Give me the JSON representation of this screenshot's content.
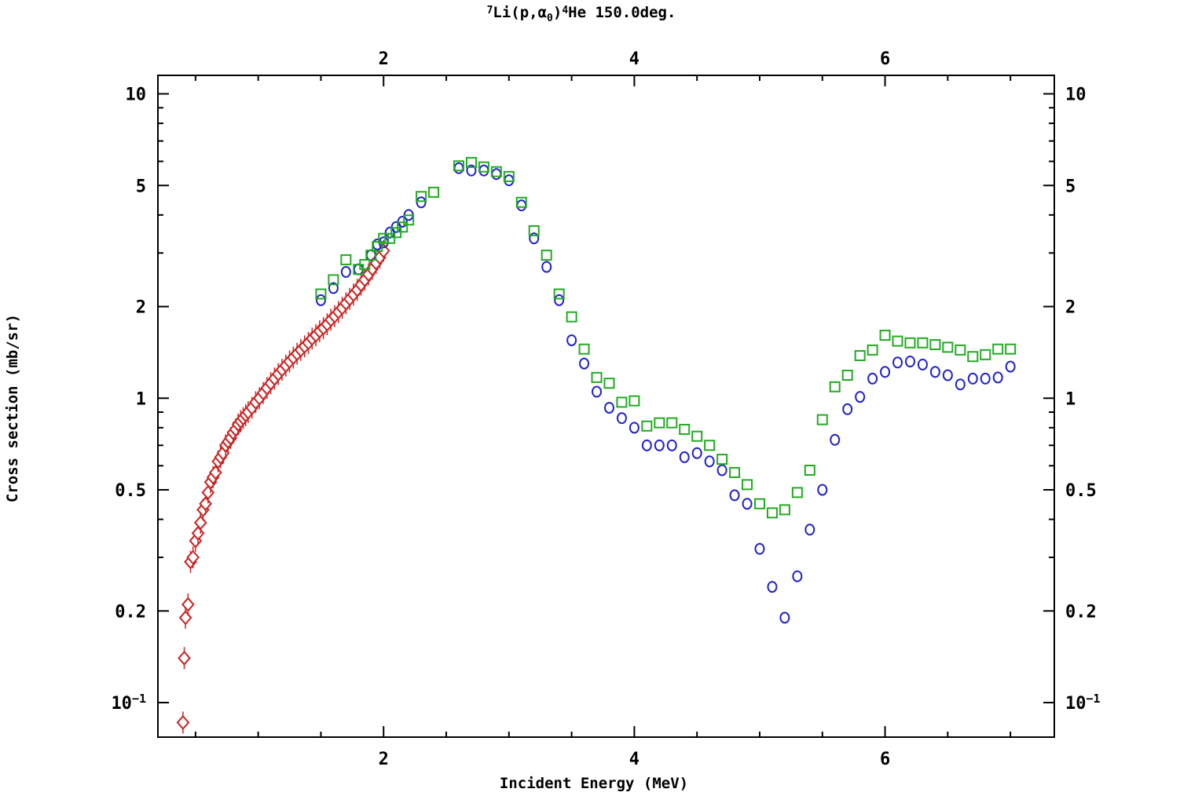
{
  "chart_data": {
    "type": "scatter",
    "title": {
      "pre": "7",
      "a": "Li(p,",
      "greek": "α",
      "sub": "0",
      "b": ")",
      "sup": "4",
      "c": "He 150.0deg."
    },
    "xlabel": "Incident Energy (MeV)",
    "ylabel": "Cross section (mb/sr)",
    "xlim": [
      0.2,
      7.35
    ],
    "ylim": [
      0.077,
      11.5
    ],
    "yscale": "log",
    "x_ticks": [
      2,
      4,
      6
    ],
    "y_ticks": [
      {
        "value": 10,
        "label": "10"
      },
      {
        "value": 5,
        "label": "5"
      },
      {
        "value": 2,
        "label": "2"
      },
      {
        "value": 1,
        "label": "1"
      },
      {
        "value": 0.5,
        "label": "0.5"
      },
      {
        "value": 0.2,
        "label": "0.2"
      },
      {
        "value": 0.1,
        "label": "10",
        "sup": "−1"
      }
    ],
    "grid": false,
    "series": [
      {
        "marker": "diamond",
        "color": "#cc2222",
        "points": [
          [
            0.4,
            0.086
          ],
          [
            0.41,
            0.14
          ],
          [
            0.42,
            0.19
          ],
          [
            0.44,
            0.21
          ],
          [
            0.46,
            0.29
          ],
          [
            0.48,
            0.3
          ],
          [
            0.5,
            0.34
          ],
          [
            0.52,
            0.36
          ],
          [
            0.54,
            0.39
          ],
          [
            0.56,
            0.43
          ],
          [
            0.58,
            0.45
          ],
          [
            0.6,
            0.49
          ],
          [
            0.62,
            0.53
          ],
          [
            0.64,
            0.55
          ],
          [
            0.66,
            0.57
          ],
          [
            0.68,
            0.62
          ],
          [
            0.7,
            0.64
          ],
          [
            0.72,
            0.66
          ],
          [
            0.74,
            0.7
          ],
          [
            0.76,
            0.72
          ],
          [
            0.78,
            0.74
          ],
          [
            0.8,
            0.77
          ],
          [
            0.82,
            0.79
          ],
          [
            0.84,
            0.82
          ],
          [
            0.86,
            0.84
          ],
          [
            0.88,
            0.86
          ],
          [
            0.9,
            0.88
          ],
          [
            0.92,
            0.9
          ],
          [
            0.95,
            0.93
          ],
          [
            0.98,
            0.97
          ],
          [
            1.01,
            1.0
          ],
          [
            1.04,
            1.04
          ],
          [
            1.07,
            1.08
          ],
          [
            1.1,
            1.12
          ],
          [
            1.13,
            1.16
          ],
          [
            1.16,
            1.2
          ],
          [
            1.19,
            1.24
          ],
          [
            1.22,
            1.28
          ],
          [
            1.25,
            1.32
          ],
          [
            1.28,
            1.36
          ],
          [
            1.31,
            1.4
          ],
          [
            1.34,
            1.44
          ],
          [
            1.37,
            1.48
          ],
          [
            1.4,
            1.52
          ],
          [
            1.43,
            1.57
          ],
          [
            1.46,
            1.61
          ],
          [
            1.49,
            1.66
          ],
          [
            1.52,
            1.7
          ],
          [
            1.55,
            1.75
          ],
          [
            1.58,
            1.81
          ],
          [
            1.61,
            1.86
          ],
          [
            1.64,
            1.92
          ],
          [
            1.67,
            1.98
          ],
          [
            1.7,
            2.05
          ],
          [
            1.73,
            2.12
          ],
          [
            1.76,
            2.19
          ],
          [
            1.79,
            2.27
          ],
          [
            1.82,
            2.36
          ],
          [
            1.85,
            2.45
          ],
          [
            1.88,
            2.55
          ],
          [
            1.91,
            2.66
          ],
          [
            1.94,
            2.78
          ],
          [
            1.97,
            2.9
          ],
          [
            2.0,
            3.05
          ]
        ]
      },
      {
        "marker": "circle",
        "color": "#2222cc",
        "points": [
          [
            1.5,
            2.1
          ],
          [
            1.6,
            2.3
          ],
          [
            1.7,
            2.6
          ],
          [
            1.8,
            2.65
          ],
          [
            1.9,
            2.95
          ],
          [
            1.95,
            3.2
          ],
          [
            2.0,
            3.25
          ],
          [
            2.05,
            3.5
          ],
          [
            2.1,
            3.65
          ],
          [
            2.15,
            3.8
          ],
          [
            2.2,
            4.0
          ],
          [
            2.3,
            4.4
          ],
          [
            2.6,
            5.7
          ],
          [
            2.7,
            5.6
          ],
          [
            2.8,
            5.6
          ],
          [
            2.9,
            5.45
          ],
          [
            3.0,
            5.2
          ],
          [
            3.1,
            4.3
          ],
          [
            3.2,
            3.35
          ],
          [
            3.3,
            2.7
          ],
          [
            3.4,
            2.1
          ],
          [
            3.5,
            1.55
          ],
          [
            3.6,
            1.3
          ],
          [
            3.7,
            1.05
          ],
          [
            3.8,
            0.93
          ],
          [
            3.9,
            0.86
          ],
          [
            4.0,
            0.8
          ],
          [
            4.1,
            0.7
          ],
          [
            4.2,
            0.7
          ],
          [
            4.3,
            0.7
          ],
          [
            4.4,
            0.64
          ],
          [
            4.5,
            0.66
          ],
          [
            4.6,
            0.62
          ],
          [
            4.7,
            0.58
          ],
          [
            4.8,
            0.48
          ],
          [
            4.9,
            0.45
          ],
          [
            5.0,
            0.32
          ],
          [
            5.1,
            0.24
          ],
          [
            5.2,
            0.19
          ],
          [
            5.3,
            0.26
          ],
          [
            5.4,
            0.37
          ],
          [
            5.5,
            0.5
          ],
          [
            5.6,
            0.73
          ],
          [
            5.7,
            0.92
          ],
          [
            5.8,
            1.01
          ],
          [
            5.9,
            1.16
          ],
          [
            6.0,
            1.22
          ],
          [
            6.1,
            1.31
          ],
          [
            6.2,
            1.32
          ],
          [
            6.3,
            1.29
          ],
          [
            6.4,
            1.22
          ],
          [
            6.5,
            1.19
          ],
          [
            6.6,
            1.11
          ],
          [
            6.7,
            1.16
          ],
          [
            6.8,
            1.16
          ],
          [
            6.9,
            1.17
          ],
          [
            7.0,
            1.27
          ]
        ]
      },
      {
        "marker": "square",
        "color": "#22aa22",
        "points": [
          [
            1.5,
            2.2
          ],
          [
            1.6,
            2.45
          ],
          [
            1.7,
            2.85
          ],
          [
            1.8,
            2.65
          ],
          [
            1.85,
            2.75
          ],
          [
            1.9,
            2.95
          ],
          [
            1.95,
            3.15
          ],
          [
            2.0,
            3.35
          ],
          [
            2.05,
            3.35
          ],
          [
            2.1,
            3.5
          ],
          [
            2.15,
            3.65
          ],
          [
            2.2,
            3.85
          ],
          [
            2.3,
            4.6
          ],
          [
            2.4,
            4.75
          ],
          [
            2.6,
            5.8
          ],
          [
            2.7,
            5.95
          ],
          [
            2.8,
            5.75
          ],
          [
            2.9,
            5.55
          ],
          [
            3.0,
            5.35
          ],
          [
            3.1,
            4.4
          ],
          [
            3.2,
            3.55
          ],
          [
            3.3,
            2.95
          ],
          [
            3.4,
            2.2
          ],
          [
            3.5,
            1.85
          ],
          [
            3.6,
            1.45
          ],
          [
            3.7,
            1.17
          ],
          [
            3.8,
            1.12
          ],
          [
            3.9,
            0.97
          ],
          [
            4.0,
            0.98
          ],
          [
            4.1,
            0.81
          ],
          [
            4.2,
            0.83
          ],
          [
            4.3,
            0.83
          ],
          [
            4.4,
            0.79
          ],
          [
            4.5,
            0.75
          ],
          [
            4.6,
            0.7
          ],
          [
            4.7,
            0.63
          ],
          [
            4.8,
            0.57
          ],
          [
            4.9,
            0.52
          ],
          [
            5.0,
            0.45
          ],
          [
            5.1,
            0.42
          ],
          [
            5.2,
            0.43
          ],
          [
            5.3,
            0.49
          ],
          [
            5.4,
            0.58
          ],
          [
            5.5,
            0.85
          ],
          [
            5.6,
            1.09
          ],
          [
            5.7,
            1.19
          ],
          [
            5.8,
            1.38
          ],
          [
            5.9,
            1.44
          ],
          [
            6.0,
            1.61
          ],
          [
            6.1,
            1.54
          ],
          [
            6.2,
            1.52
          ],
          [
            6.3,
            1.52
          ],
          [
            6.4,
            1.5
          ],
          [
            6.5,
            1.47
          ],
          [
            6.6,
            1.44
          ],
          [
            6.7,
            1.37
          ],
          [
            6.8,
            1.39
          ],
          [
            6.9,
            1.45
          ],
          [
            7.0,
            1.45
          ]
        ]
      }
    ]
  }
}
